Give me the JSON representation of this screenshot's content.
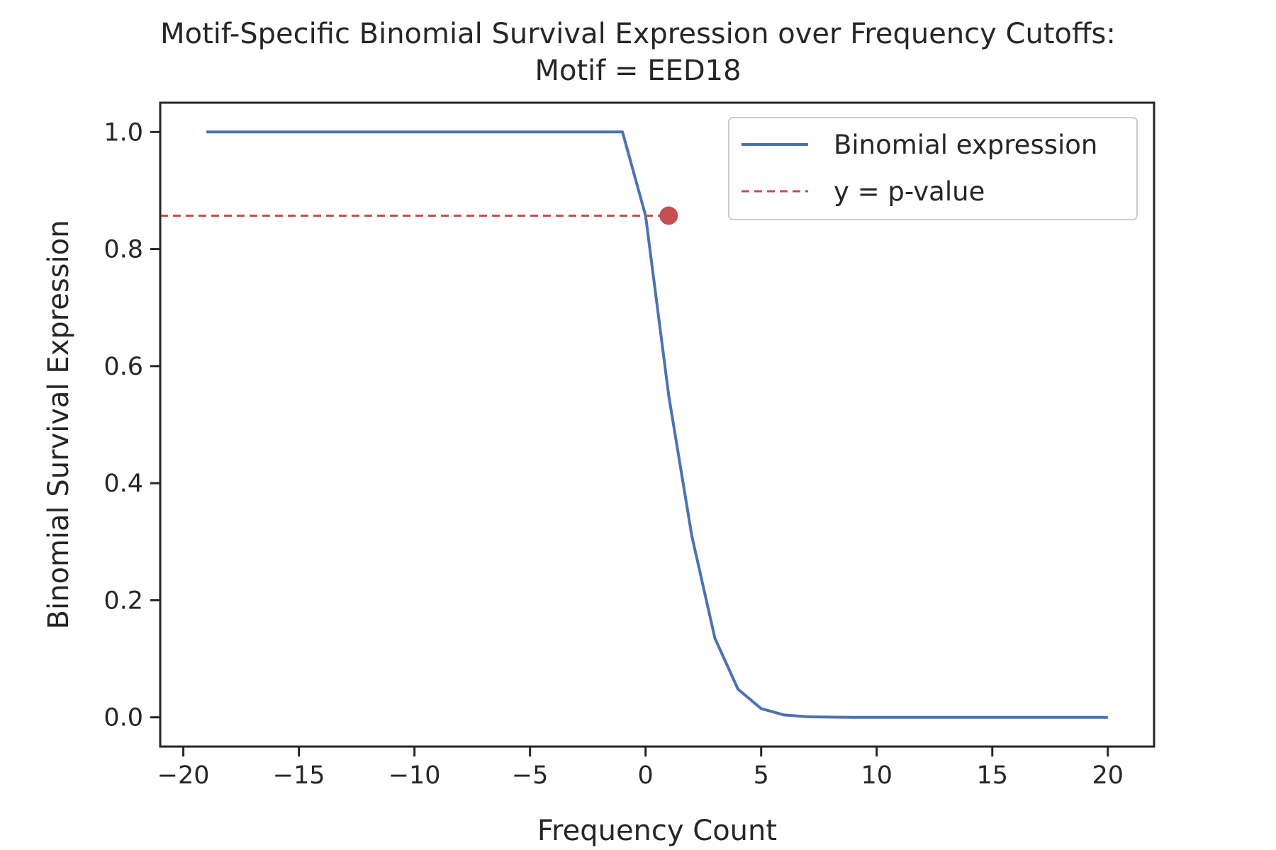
{
  "chart_data": {
    "type": "line",
    "title_line1": "Motif-Specific Binomial Survival Expression over Frequency Cutoffs:",
    "title_line2": "Motif = EED18",
    "xlabel": "Frequency Count",
    "ylabel": "Binomial Survival Expression",
    "xlim": [
      -21,
      22
    ],
    "ylim": [
      -0.05,
      1.05
    ],
    "x_ticks": [
      -20,
      -15,
      -10,
      -5,
      0,
      5,
      10,
      15,
      20
    ],
    "x_tick_labels": [
      "−20",
      "−15",
      "−10",
      "−5",
      "0",
      "5",
      "10",
      "15",
      "20"
    ],
    "y_ticks": [
      0.0,
      0.2,
      0.4,
      0.6,
      0.8,
      1.0
    ],
    "y_tick_labels": [
      "0.0",
      "0.2",
      "0.4",
      "0.6",
      "0.8",
      "1.0"
    ],
    "grid": false,
    "legend_position": "top-right",
    "series": [
      {
        "name": "Binomial expression",
        "kind": "line",
        "color": "#4c72b0",
        "x": [
          -19,
          -18,
          -17,
          -16,
          -15,
          -14,
          -13,
          -12,
          -11,
          -10,
          -9,
          -8,
          -7,
          -6,
          -5,
          -4,
          -3,
          -2,
          -1,
          0,
          1,
          2,
          3,
          4,
          5,
          6,
          7,
          8,
          9,
          10,
          11,
          12,
          13,
          14,
          15,
          16,
          17,
          18,
          19,
          20
        ],
        "y": [
          1,
          1,
          1,
          1,
          1,
          1,
          1,
          1,
          1,
          1,
          1,
          1,
          1,
          1,
          1,
          1,
          1,
          1,
          1,
          0.857,
          0.55,
          0.31,
          0.135,
          0.048,
          0.015,
          0.004,
          0.001,
          0.0003,
          0,
          0,
          0,
          0,
          0,
          0,
          0,
          0,
          0,
          0,
          0,
          0
        ]
      },
      {
        "name": "y = p-value",
        "kind": "hline-dashed",
        "color": "#c44e52",
        "y": 0.857,
        "x_end": 1
      }
    ],
    "marker": {
      "x": 1,
      "y": 0.857,
      "color": "#c44e52"
    }
  }
}
